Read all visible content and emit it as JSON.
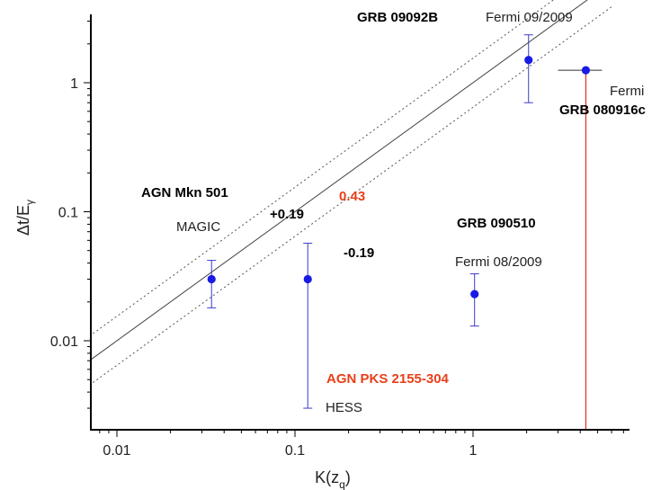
{
  "colors": {
    "point": "#1a1ae6",
    "errorbar": "#3b3bc8",
    "fit_line": "#444444",
    "band_line": "#555555",
    "limit_arrow": "#e03020",
    "accent_text": "#e8401a"
  },
  "chart_data": {
    "type": "scatter",
    "x_scale": "log",
    "y_scale": "log",
    "xlabel_main": "K(z",
    "xlabel_sub": "q",
    "xlabel_close": ")",
    "ylabel_main": "Δt/E",
    "ylabel_sub": "γ",
    "xlim": [
      0.007,
      6.5
    ],
    "ylim": [
      0.0015,
      4.5
    ],
    "x_ticks": [
      {
        "value": 0.01,
        "label": "0.01"
      },
      {
        "value": 0.1,
        "label": "0.1"
      },
      {
        "value": 1,
        "label": "1"
      }
    ],
    "y_ticks": [
      {
        "value": 0.01,
        "label": "0.01"
      },
      {
        "value": 0.1,
        "label": "0.1"
      },
      {
        "value": 1,
        "label": "1"
      }
    ],
    "points": [
      {
        "x": 0.034,
        "y": 0.03,
        "y_low": 0.018,
        "y_high": 0.042
      },
      {
        "x": 0.118,
        "y": 0.03,
        "y_low": 0.003,
        "y_high": 0.057
      },
      {
        "x": 1.02,
        "y": 0.023,
        "y_low": 0.013,
        "y_high": 0.033
      },
      {
        "x": 2.05,
        "y": 1.5,
        "y_low": 0.7,
        "y_high": 2.35
      },
      {
        "x": 4.3,
        "y": 1.25,
        "x_low": 3.0,
        "x_high": 5.3,
        "upper_limit_to": 0.0015
      }
    ],
    "fit_line": {
      "slope": 1,
      "intercept_log10": 0,
      "x_range": [
        0.007,
        6.0
      ]
    },
    "band": {
      "offset_log10": 0.19
    },
    "annotations": {
      "grb_092b_name": "GRB 09092B",
      "grb_092b_sub": "Fermi 09/2009",
      "grb_080916_name": "GRB 080916c",
      "grb_080916_sub": "Fermi",
      "mkn501_name": "AGN Mkn 501",
      "mkn501_sub": "MAGIC",
      "band_plus": "+0.19",
      "band_minus": "-0.19",
      "slope_value": "0.43",
      "grb_090510_name": "GRB 090510",
      "grb_090510_sub": "Fermi 08/2009",
      "pks_name": "AGN PKS 2155-304",
      "pks_sub": "HESS"
    }
  }
}
